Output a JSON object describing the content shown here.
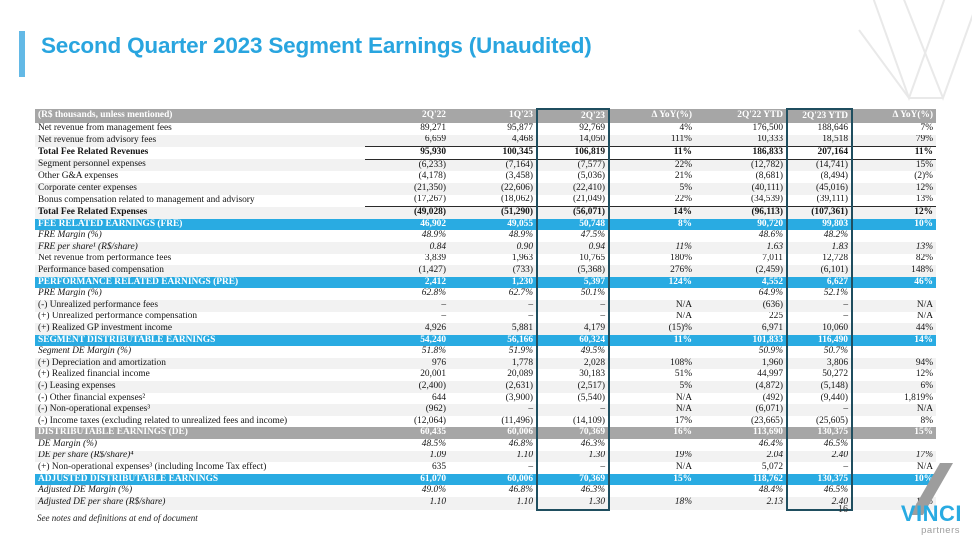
{
  "slide": {
    "title": "Second Quarter 2023 Segment Earnings (Unaudited)",
    "footnote": "See notes and definitions at end of document",
    "page_number": "16",
    "logo": {
      "name": "VINCI",
      "subtitle": "partners"
    }
  },
  "colors": {
    "accent_blue": "#29abe2",
    "header_gray": "#a6a6a6",
    "highlight_border": "#1f4e5f",
    "shaded_row": "#f2f2f2",
    "title_blue": "#29a5df"
  },
  "table": {
    "columns": [
      "(R$ thousands, unless mentioned)",
      "2Q'22",
      "1Q'23",
      "2Q'23",
      "Δ YoY(%)",
      "2Q'22 YTD",
      "2Q'23 YTD",
      "Δ YoY(%)"
    ],
    "highlighted_columns": [
      3,
      6
    ],
    "rows": [
      {
        "label": "Net revenue from management fees",
        "values": [
          "89,271",
          "95,877",
          "92,769",
          "4%",
          "176,500",
          "188,646",
          "7%"
        ],
        "kind": "data",
        "italic": false,
        "shaded": false,
        "rule": false
      },
      {
        "label": "Net revenue from advisory fees",
        "values": [
          "6,659",
          "4,468",
          "14,050",
          "111%",
          "10,333",
          "18,518",
          "79%"
        ],
        "kind": "data",
        "italic": false,
        "shaded": true,
        "rule": true
      },
      {
        "label": "Total Fee Related Revenues",
        "values": [
          "95,930",
          "100,345",
          "106,819",
          "11%",
          "186,833",
          "207,164",
          "11%"
        ],
        "kind": "total",
        "italic": false,
        "shaded": false,
        "rule": true
      },
      {
        "label": "Segment personnel expenses",
        "values": [
          "(6,233)",
          "(7,164)",
          "(7,577)",
          "22%",
          "(12,782)",
          "(14,741)",
          "15%"
        ],
        "kind": "data",
        "italic": false,
        "shaded": true,
        "rule": false
      },
      {
        "label": "Other G&A expenses",
        "values": [
          "(4,178)",
          "(3,458)",
          "(5,036)",
          "21%",
          "(8,681)",
          "(8,494)",
          "(2)%"
        ],
        "kind": "data",
        "italic": false,
        "shaded": false,
        "rule": false
      },
      {
        "label": "Corporate center expenses",
        "values": [
          "(21,350)",
          "(22,606)",
          "(22,410)",
          "5%",
          "(40,111)",
          "(45,016)",
          "12%"
        ],
        "kind": "data",
        "italic": false,
        "shaded": true,
        "rule": false
      },
      {
        "label": "Bonus compensation related to management and advisory",
        "values": [
          "(17,267)",
          "(18,062)",
          "(21,049)",
          "22%",
          "(34,539)",
          "(39,111)",
          "13%"
        ],
        "kind": "data",
        "italic": false,
        "shaded": false,
        "rule": true
      },
      {
        "label": "Total Fee Related Expenses",
        "values": [
          "(49,028)",
          "(51,290)",
          "(56,071)",
          "14%",
          "(96,113)",
          "(107,361)",
          "12%"
        ],
        "kind": "total",
        "italic": false,
        "shaded": true,
        "rule": false
      },
      {
        "label": "FEE RELATED EARNINGS (FRE)",
        "values": [
          "46,902",
          "49,055",
          "50,748",
          "8%",
          "90,720",
          "99,803",
          "10%"
        ],
        "kind": "section_blue",
        "italic": false,
        "shaded": false,
        "rule": false
      },
      {
        "label": "FRE Margin (%)",
        "values": [
          "48.9%",
          "48.9%",
          "47.5%",
          "",
          "48.6%",
          "48.2%",
          ""
        ],
        "kind": "data",
        "italic": true,
        "shaded": false,
        "rule": false
      },
      {
        "label": "FRE per share¹ (R$/share)",
        "values": [
          "0.84",
          "0.90",
          "0.94",
          "11%",
          "1.63",
          "1.83",
          "13%"
        ],
        "kind": "data",
        "italic": true,
        "shaded": true,
        "rule": false
      },
      {
        "label": "Net revenue from performance fees",
        "values": [
          "3,839",
          "1,963",
          "10,765",
          "180%",
          "7,011",
          "12,728",
          "82%"
        ],
        "kind": "data",
        "italic": false,
        "shaded": false,
        "rule": false
      },
      {
        "label": "Performance based compensation",
        "values": [
          "(1,427)",
          "(733)",
          "(5,368)",
          "276%",
          "(2,459)",
          "(6,101)",
          "148%"
        ],
        "kind": "data",
        "italic": false,
        "shaded": true,
        "rule": false
      },
      {
        "label": "PERFORMANCE RELATED EARNINGS (PRE)",
        "values": [
          "2,412",
          "1,230",
          "5,397",
          "124%",
          "4,552",
          "6,627",
          "46%"
        ],
        "kind": "section_blue",
        "italic": false,
        "shaded": false,
        "rule": false
      },
      {
        "label": "PRE Margin (%)",
        "values": [
          "62.8%",
          "62.7%",
          "50.1%",
          "",
          "64.9%",
          "52.1%",
          ""
        ],
        "kind": "data",
        "italic": true,
        "shaded": false,
        "rule": false
      },
      {
        "label": "(-) Unrealized performance fees",
        "values": [
          "–",
          "–",
          "–",
          "N/A",
          "(636)",
          "–",
          "N/A"
        ],
        "kind": "data",
        "italic": false,
        "shaded": true,
        "rule": false
      },
      {
        "label": "(+) Unrealized performance compensation",
        "values": [
          "–",
          "–",
          "–",
          "N/A",
          "225",
          "–",
          "N/A"
        ],
        "kind": "data",
        "italic": false,
        "shaded": false,
        "rule": false
      },
      {
        "label": "(+) Realized GP investment income",
        "values": [
          "4,926",
          "5,881",
          "4,179",
          "(15)%",
          "6,971",
          "10,060",
          "44%"
        ],
        "kind": "data",
        "italic": false,
        "shaded": true,
        "rule": false
      },
      {
        "label": "SEGMENT DISTRIBUTABLE EARNINGS",
        "values": [
          "54,240",
          "56,166",
          "60,324",
          "11%",
          "101,833",
          "116,490",
          "14%"
        ],
        "kind": "section_blue",
        "italic": false,
        "shaded": false,
        "rule": false
      },
      {
        "label": "Segment DE Margin (%)",
        "values": [
          "51.8%",
          "51.9%",
          "49.5%",
          "",
          "50.9%",
          "50.7%",
          ""
        ],
        "kind": "data",
        "italic": true,
        "shaded": false,
        "rule": false
      },
      {
        "label": "(+) Depreciation and amortization",
        "values": [
          "976",
          "1,778",
          "2,028",
          "108%",
          "1,960",
          "3,806",
          "94%"
        ],
        "kind": "data",
        "italic": false,
        "shaded": true,
        "rule": false
      },
      {
        "label": "(+) Realized financial income",
        "values": [
          "20,001",
          "20,089",
          "30,183",
          "51%",
          "44,997",
          "50,272",
          "12%"
        ],
        "kind": "data",
        "italic": false,
        "shaded": false,
        "rule": false
      },
      {
        "label": "(-) Leasing expenses",
        "values": [
          "(2,400)",
          "(2,631)",
          "(2,517)",
          "5%",
          "(4,872)",
          "(5,148)",
          "6%"
        ],
        "kind": "data",
        "italic": false,
        "shaded": true,
        "rule": false
      },
      {
        "label": "(-) Other financial expenses²",
        "values": [
          "644",
          "(3,900)",
          "(5,540)",
          "N/A",
          "(492)",
          "(9,440)",
          "1,819%"
        ],
        "kind": "data",
        "italic": false,
        "shaded": false,
        "rule": false
      },
      {
        "label": "(-) Non-operational expenses³",
        "values": [
          "(962)",
          "–",
          "–",
          "N/A",
          "(6,071)",
          "–",
          "N/A"
        ],
        "kind": "data",
        "italic": false,
        "shaded": true,
        "rule": false
      },
      {
        "label": "(-) Income taxes (excluding related to unrealized fees and income)",
        "values": [
          "(12,064)",
          "(11,496)",
          "(14,109)",
          "17%",
          "(23,665)",
          "(25,605)",
          "8%"
        ],
        "kind": "data",
        "italic": false,
        "shaded": false,
        "rule": false
      },
      {
        "label": "DISTRIBUTABLE EARNINGS (DE)",
        "values": [
          "60,435",
          "60,006",
          "70,369",
          "16%",
          "113,690",
          "130,375",
          "15%"
        ],
        "kind": "section_gray",
        "italic": false,
        "shaded": false,
        "rule": false
      },
      {
        "label": "DE Margin (%)",
        "values": [
          "48.5%",
          "46.8%",
          "46.3%",
          "",
          "46.4%",
          "46.5%",
          ""
        ],
        "kind": "data",
        "italic": true,
        "shaded": false,
        "rule": false
      },
      {
        "label": "DE per share (R$/share)⁴",
        "values": [
          "1.09",
          "1.10",
          "1.30",
          "19%",
          "2.04",
          "2.40",
          "17%"
        ],
        "kind": "data",
        "italic": true,
        "shaded": true,
        "rule": false
      },
      {
        "label": "(+) Non-operational expenses³ (including Income Tax effect)",
        "values": [
          "635",
          "–",
          "–",
          "N/A",
          "5,072",
          "–",
          "N/A"
        ],
        "kind": "data",
        "italic": false,
        "shaded": false,
        "rule": false
      },
      {
        "label": "ADJUSTED DISTRIBUTABLE EARNINGS",
        "values": [
          "61,070",
          "60,006",
          "70,369",
          "15%",
          "118,762",
          "130,375",
          "10%"
        ],
        "kind": "section_blue",
        "italic": false,
        "shaded": false,
        "rule": false
      },
      {
        "label": "Adjusted DE Margin (%)",
        "values": [
          "49.0%",
          "46.8%",
          "46.3%",
          "",
          "48.4%",
          "46.5%",
          ""
        ],
        "kind": "data",
        "italic": true,
        "shaded": false,
        "rule": false
      },
      {
        "label": "Adjusted DE per share (R$/share)",
        "values": [
          "1.10",
          "1.10",
          "1.30",
          "18%",
          "2.13",
          "2.40",
          "12%"
        ],
        "kind": "data",
        "italic": true,
        "shaded": true,
        "rule": false
      }
    ]
  }
}
